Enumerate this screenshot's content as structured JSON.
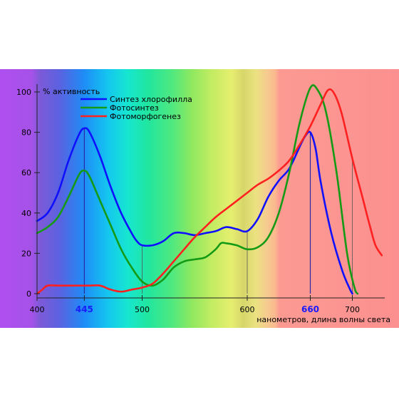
{
  "chart_data": {
    "type": "line",
    "ylabel": "% активность",
    "xlabel": "нанометров, длина волны света",
    "xlim": [
      400,
      730
    ],
    "ylim": [
      0,
      100
    ],
    "x_ticks": [
      {
        "value": 400,
        "label": "400",
        "strong": false
      },
      {
        "value": 445,
        "label": "445",
        "strong": true
      },
      {
        "value": 500,
        "label": "500",
        "strong": false
      },
      {
        "value": 600,
        "label": "600",
        "strong": false
      },
      {
        "value": 660,
        "label": "660",
        "strong": true
      },
      {
        "value": 700,
        "label": "700",
        "strong": false
      }
    ],
    "y_ticks": [
      0,
      20,
      40,
      60,
      80,
      100
    ],
    "y_tick_labels": [
      "0",
      "20",
      "40",
      "60",
      "80",
      "100"
    ],
    "grid": false,
    "legend_position": "top-left",
    "series": [
      {
        "name": "Синтез хлорофилла",
        "color": "#1010ff",
        "points": [
          [
            400,
            36
          ],
          [
            410,
            40
          ],
          [
            420,
            50
          ],
          [
            430,
            66
          ],
          [
            440,
            79
          ],
          [
            445,
            82
          ],
          [
            450,
            80
          ],
          [
            460,
            68
          ],
          [
            470,
            53
          ],
          [
            480,
            40
          ],
          [
            490,
            30
          ],
          [
            495,
            26
          ],
          [
            500,
            24
          ],
          [
            510,
            24
          ],
          [
            520,
            26
          ],
          [
            530,
            30
          ],
          [
            540,
            30
          ],
          [
            550,
            29
          ],
          [
            560,
            30
          ],
          [
            570,
            31
          ],
          [
            580,
            33
          ],
          [
            590,
            32
          ],
          [
            600,
            31
          ],
          [
            610,
            37
          ],
          [
            620,
            48
          ],
          [
            630,
            56
          ],
          [
            640,
            62
          ],
          [
            650,
            73
          ],
          [
            655,
            78
          ],
          [
            660,
            80
          ],
          [
            665,
            72
          ],
          [
            670,
            55
          ],
          [
            680,
            30
          ],
          [
            690,
            12
          ],
          [
            697,
            3
          ],
          [
            700,
            0
          ]
        ]
      },
      {
        "name": "Фотосинтез",
        "color": "#149a14",
        "points": [
          [
            400,
            30
          ],
          [
            410,
            33
          ],
          [
            420,
            38
          ],
          [
            430,
            48
          ],
          [
            440,
            59
          ],
          [
            445,
            61
          ],
          [
            450,
            58
          ],
          [
            460,
            46
          ],
          [
            470,
            34
          ],
          [
            480,
            22
          ],
          [
            490,
            13
          ],
          [
            500,
            6
          ],
          [
            510,
            4
          ],
          [
            520,
            7
          ],
          [
            530,
            13
          ],
          [
            540,
            16
          ],
          [
            550,
            17
          ],
          [
            560,
            18
          ],
          [
            570,
            22
          ],
          [
            575,
            25
          ],
          [
            580,
            25
          ],
          [
            590,
            24
          ],
          [
            600,
            22
          ],
          [
            610,
            23
          ],
          [
            620,
            28
          ],
          [
            630,
            40
          ],
          [
            640,
            60
          ],
          [
            650,
            85
          ],
          [
            660,
            102
          ],
          [
            667,
            101
          ],
          [
            675,
            90
          ],
          [
            685,
            60
          ],
          [
            695,
            20
          ],
          [
            702,
            3
          ],
          [
            705,
            0
          ]
        ]
      },
      {
        "name": "Фотоморфогенез",
        "color": "#ff2020",
        "points": [
          [
            400,
            0
          ],
          [
            405,
            2
          ],
          [
            410,
            4
          ],
          [
            420,
            4
          ],
          [
            430,
            4
          ],
          [
            440,
            4
          ],
          [
            450,
            4
          ],
          [
            460,
            4
          ],
          [
            470,
            2
          ],
          [
            480,
            1
          ],
          [
            490,
            2
          ],
          [
            500,
            3
          ],
          [
            510,
            5
          ],
          [
            520,
            10
          ],
          [
            530,
            16
          ],
          [
            540,
            22
          ],
          [
            550,
            28
          ],
          [
            560,
            33
          ],
          [
            570,
            38
          ],
          [
            580,
            42
          ],
          [
            590,
            46
          ],
          [
            600,
            50
          ],
          [
            610,
            54
          ],
          [
            620,
            57
          ],
          [
            630,
            61
          ],
          [
            640,
            66
          ],
          [
            650,
            74
          ],
          [
            660,
            83
          ],
          [
            670,
            94
          ],
          [
            677,
            101
          ],
          [
            683,
            99
          ],
          [
            690,
            89
          ],
          [
            700,
            67
          ],
          [
            710,
            47
          ],
          [
            717,
            33
          ],
          [
            722,
            24
          ],
          [
            728,
            19
          ]
        ]
      }
    ]
  }
}
